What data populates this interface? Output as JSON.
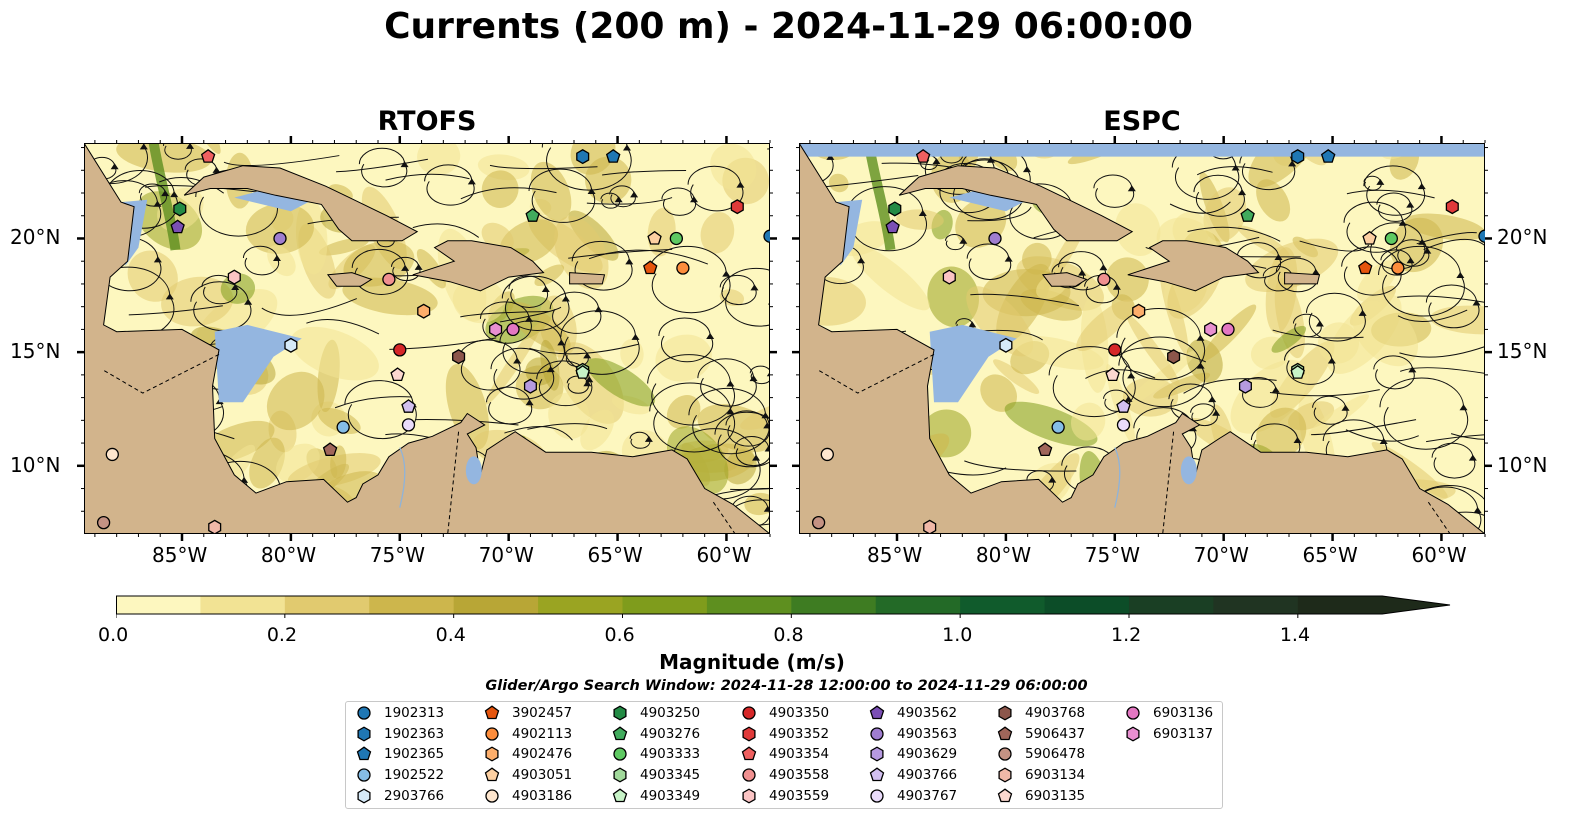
{
  "title": "Currents (200 m) - 2024-11-29 06:00:00",
  "panels": [
    {
      "title": "RTOFS"
    },
    {
      "title": "ESPC"
    }
  ],
  "map_extent": {
    "lon_min": -89.5,
    "lon_max": -58.0,
    "lat_min": 7.0,
    "lat_max": 24.2
  },
  "lat_ticks": [
    {
      "value": 10,
      "label": "10°N"
    },
    {
      "value": 15,
      "label": "15°N"
    },
    {
      "value": 20,
      "label": "20°N"
    }
  ],
  "lon_ticks": [
    {
      "value": -85,
      "label": "85°W"
    },
    {
      "value": -80,
      "label": "80°W"
    },
    {
      "value": -75,
      "label": "75°W"
    },
    {
      "value": -70,
      "label": "70°W"
    },
    {
      "value": -65,
      "label": "65°W"
    },
    {
      "value": -60,
      "label": "60°W"
    }
  ],
  "colors": {
    "land": "#d2b48c",
    "water_shallow": "#94b6e0",
    "speed_scale": [
      "#fdf7bf",
      "#f2e394",
      "#e1ca6f",
      "#cdb64c",
      "#b8a636",
      "#9aa422",
      "#7f9c1c",
      "#5e8f1f",
      "#3e7c22",
      "#236a27",
      "#105b2c",
      "#0c4d28",
      "#1a3f24",
      "#203422",
      "#1e2a1a"
    ]
  },
  "colorbar": {
    "label": "Magnitude (m/s)",
    "ticks": [
      "0.0",
      "0.2",
      "0.4",
      "0.6",
      "0.8",
      "1.0",
      "1.2",
      "1.4"
    ],
    "extend": "max"
  },
  "search_window": "Glider/Argo Search Window: 2024-11-28 12:00:00 to 2024-11-29 06:00:00",
  "legend": [
    {
      "id": "1902313",
      "color": "#1f77b4",
      "marker": "circle"
    },
    {
      "id": "1902363",
      "color": "#1f77b4",
      "marker": "hexagon"
    },
    {
      "id": "1902365",
      "color": "#1f77b4",
      "marker": "pentagon"
    },
    {
      "id": "1902522",
      "color": "#85bde6",
      "marker": "circle"
    },
    {
      "id": "2903766",
      "color": "#d6eaf8",
      "marker": "hexagon"
    },
    {
      "id": "3902457",
      "color": "#e6550d",
      "marker": "pentagon"
    },
    {
      "id": "4902113",
      "color": "#fd8d3c",
      "marker": "circle"
    },
    {
      "id": "4902476",
      "color": "#fdae6b",
      "marker": "hexagon"
    },
    {
      "id": "4903051",
      "color": "#fdd0a2",
      "marker": "pentagon"
    },
    {
      "id": "4903186",
      "color": "#fee6ce",
      "marker": "circle"
    },
    {
      "id": "4903250",
      "color": "#238b45",
      "marker": "hexagon"
    },
    {
      "id": "4903276",
      "color": "#41ab5d",
      "marker": "pentagon"
    },
    {
      "id": "4903333",
      "color": "#5ec962",
      "marker": "circle"
    },
    {
      "id": "4903345",
      "color": "#a1d99b",
      "marker": "hexagon"
    },
    {
      "id": "4903349",
      "color": "#c7f3c7",
      "marker": "pentagon"
    },
    {
      "id": "4903350",
      "color": "#d62728",
      "marker": "circle"
    },
    {
      "id": "4903352",
      "color": "#e03a3a",
      "marker": "hexagon"
    },
    {
      "id": "4903354",
      "color": "#ef6060",
      "marker": "pentagon"
    },
    {
      "id": "4903558",
      "color": "#f09090",
      "marker": "circle"
    },
    {
      "id": "4903559",
      "color": "#fbc4c4",
      "marker": "hexagon"
    },
    {
      "id": "4903562",
      "color": "#7b4fb5",
      "marker": "pentagon"
    },
    {
      "id": "4903563",
      "color": "#9f7dcf",
      "marker": "circle"
    },
    {
      "id": "4903629",
      "color": "#b69ae0",
      "marker": "hexagon"
    },
    {
      "id": "4903766",
      "color": "#d2c0f0",
      "marker": "pentagon"
    },
    {
      "id": "4903767",
      "color": "#eadcfb",
      "marker": "circle"
    },
    {
      "id": "4903768",
      "color": "#8c564b",
      "marker": "hexagon"
    },
    {
      "id": "5906437",
      "color": "#a0665a",
      "marker": "pentagon"
    },
    {
      "id": "5906478",
      "color": "#c49283",
      "marker": "circle"
    },
    {
      "id": "6903134",
      "color": "#f0b8a8",
      "marker": "hexagon"
    },
    {
      "id": "6903135",
      "color": "#fcd8cf",
      "marker": "pentagon"
    },
    {
      "id": "6903136",
      "color": "#e377c2",
      "marker": "circle"
    },
    {
      "id": "6903137",
      "color": "#e88fd0",
      "marker": "hexagon"
    }
  ],
  "platforms": {
    "RTOFS": [
      {
        "id": "1902313",
        "lon": -58.0,
        "lat": 20.1
      },
      {
        "id": "1902363",
        "lon": -66.6,
        "lat": 23.6
      },
      {
        "id": "1902365",
        "lon": -65.2,
        "lat": 23.6
      },
      {
        "id": "1902522",
        "lon": -77.6,
        "lat": 11.7
      },
      {
        "id": "2903766",
        "lon": -80.0,
        "lat": 15.3
      },
      {
        "id": "3902457",
        "lon": -63.5,
        "lat": 18.7
      },
      {
        "id": "4902113",
        "lon": -62.0,
        "lat": 18.7
      },
      {
        "id": "4902476",
        "lon": -73.9,
        "lat": 16.8
      },
      {
        "id": "4903051",
        "lon": -63.3,
        "lat": 20.0
      },
      {
        "id": "4903186",
        "lon": -88.2,
        "lat": 10.5
      },
      {
        "id": "4903250",
        "lon": -85.1,
        "lat": 21.3
      },
      {
        "id": "4903276",
        "lon": -68.9,
        "lat": 21.0
      },
      {
        "id": "4903333",
        "lon": -62.3,
        "lat": 20.0
      },
      {
        "id": "4903345",
        "lon": -66.6,
        "lat": 14.2
      },
      {
        "id": "4903349",
        "lon": -66.6,
        "lat": 14.1
      },
      {
        "id": "4903350",
        "lon": -75.0,
        "lat": 15.1
      },
      {
        "id": "4903352",
        "lon": -59.5,
        "lat": 21.4
      },
      {
        "id": "4903354",
        "lon": -83.8,
        "lat": 23.6
      },
      {
        "id": "4903558",
        "lon": -75.5,
        "lat": 18.2
      },
      {
        "id": "4903559",
        "lon": -82.6,
        "lat": 18.3
      },
      {
        "id": "4903562",
        "lon": -85.2,
        "lat": 20.5
      },
      {
        "id": "4903563",
        "lon": -80.5,
        "lat": 20.0
      },
      {
        "id": "4903629",
        "lon": -69.0,
        "lat": 13.5
      },
      {
        "id": "4903766",
        "lon": -74.6,
        "lat": 12.6
      },
      {
        "id": "4903767",
        "lon": -74.6,
        "lat": 11.8
      },
      {
        "id": "4903768",
        "lon": -72.3,
        "lat": 14.8
      },
      {
        "id": "5906437",
        "lon": -78.2,
        "lat": 10.7
      },
      {
        "id": "5906478",
        "lon": -88.6,
        "lat": 7.5
      },
      {
        "id": "6903134",
        "lon": -83.5,
        "lat": 7.3
      },
      {
        "id": "6903135",
        "lon": -75.1,
        "lat": 14.0
      },
      {
        "id": "6903136",
        "lon": -69.8,
        "lat": 16.0
      },
      {
        "id": "6903137",
        "lon": -70.6,
        "lat": 16.0
      }
    ],
    "ESPC": [
      {
        "id": "1902313",
        "lon": -58.0,
        "lat": 20.1
      },
      {
        "id": "1902363",
        "lon": -66.6,
        "lat": 23.6
      },
      {
        "id": "1902365",
        "lon": -65.2,
        "lat": 23.6
      },
      {
        "id": "1902522",
        "lon": -77.6,
        "lat": 11.7
      },
      {
        "id": "2903766",
        "lon": -80.0,
        "lat": 15.3
      },
      {
        "id": "3902457",
        "lon": -63.5,
        "lat": 18.7
      },
      {
        "id": "4902113",
        "lon": -62.0,
        "lat": 18.7
      },
      {
        "id": "4902476",
        "lon": -73.9,
        "lat": 16.8
      },
      {
        "id": "4903051",
        "lon": -63.3,
        "lat": 20.0
      },
      {
        "id": "4903186",
        "lon": -88.2,
        "lat": 10.5
      },
      {
        "id": "4903250",
        "lon": -85.1,
        "lat": 21.3
      },
      {
        "id": "4903276",
        "lon": -68.9,
        "lat": 21.0
      },
      {
        "id": "4903333",
        "lon": -62.3,
        "lat": 20.0
      },
      {
        "id": "4903345",
        "lon": -66.6,
        "lat": 14.2
      },
      {
        "id": "4903349",
        "lon": -66.6,
        "lat": 14.1
      },
      {
        "id": "4903350",
        "lon": -75.0,
        "lat": 15.1
      },
      {
        "id": "4903352",
        "lon": -59.5,
        "lat": 21.4
      },
      {
        "id": "4903354",
        "lon": -83.8,
        "lat": 23.6
      },
      {
        "id": "4903558",
        "lon": -75.5,
        "lat": 18.2
      },
      {
        "id": "4903559",
        "lon": -82.6,
        "lat": 18.3
      },
      {
        "id": "4903562",
        "lon": -85.2,
        "lat": 20.5
      },
      {
        "id": "4903563",
        "lon": -80.5,
        "lat": 20.0
      },
      {
        "id": "4903629",
        "lon": -69.0,
        "lat": 13.5
      },
      {
        "id": "4903766",
        "lon": -74.6,
        "lat": 12.6
      },
      {
        "id": "4903767",
        "lon": -74.6,
        "lat": 11.8
      },
      {
        "id": "4903768",
        "lon": -72.3,
        "lat": 14.8
      },
      {
        "id": "5906437",
        "lon": -78.2,
        "lat": 10.7
      },
      {
        "id": "5906478",
        "lon": -88.6,
        "lat": 7.5
      },
      {
        "id": "6903134",
        "lon": -83.5,
        "lat": 7.3
      },
      {
        "id": "6903135",
        "lon": -75.1,
        "lat": 14.0
      },
      {
        "id": "6903136",
        "lon": -69.8,
        "lat": 16.0
      },
      {
        "id": "6903137",
        "lon": -70.6,
        "lat": 16.0
      }
    ]
  }
}
